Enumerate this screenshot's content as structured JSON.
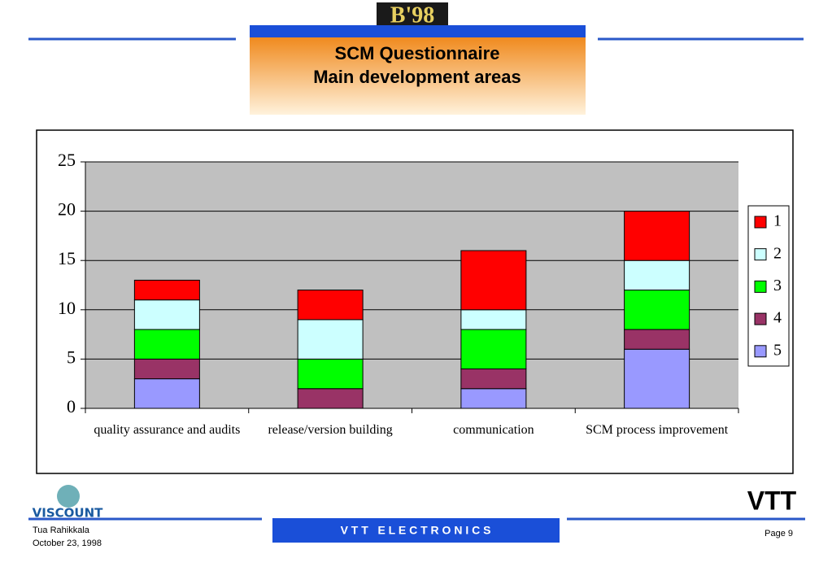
{
  "slide": {
    "logo": "B'98",
    "title": "SCM Questionnaire",
    "subtitle": "Main development areas",
    "footer_left_logo": "VISCOUNT",
    "author": "Tua Rahikkala",
    "date": "October 23, 1998",
    "footer_center": "V T T   E L E C T R O N I C S",
    "footer_right_logo": "VTT",
    "page": "Page 9"
  },
  "chart_data": {
    "type": "stacked_bar",
    "categories": [
      "quality assurance and audits",
      "release/version building",
      "communication",
      "SCM process improvement"
    ],
    "series": [
      {
        "name": "1",
        "color": "#ff0000",
        "values": [
          2,
          3,
          6,
          5
        ]
      },
      {
        "name": "2",
        "color": "#ccffff",
        "values": [
          3,
          4,
          2,
          3
        ]
      },
      {
        "name": "3",
        "color": "#00ff00",
        "values": [
          3,
          3,
          4,
          4
        ]
      },
      {
        "name": "4",
        "color": "#993366",
        "values": [
          2,
          2,
          2,
          2
        ]
      },
      {
        "name": "5",
        "color": "#9999ff",
        "values": [
          3,
          0,
          2,
          6
        ]
      }
    ],
    "ylim": [
      0,
      25
    ],
    "yticks": [
      0,
      5,
      10,
      15,
      20,
      25
    ],
    "grid": true,
    "legend": "right"
  }
}
